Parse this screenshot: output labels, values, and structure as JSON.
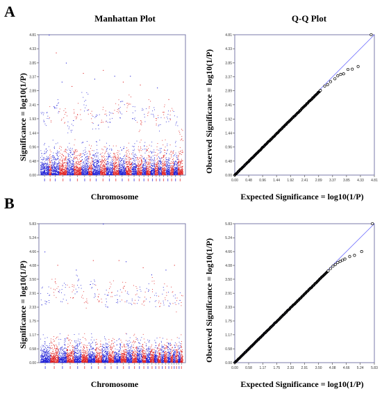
{
  "panels": [
    {
      "letter": "A",
      "manhattan_title": "Manhattan Plot",
      "qq_title": "Q-Q Plot"
    },
    {
      "letter": "B"
    }
  ],
  "colors": {
    "odd_chromosome": "#1f1fd6",
    "even_chromosome": "#e02020",
    "qq_points": "#000000",
    "qq_line": "#6a6aff"
  },
  "chart_data": [
    {
      "type": "scatter",
      "subtype": "manhattan",
      "title": "Manhattan Plot",
      "xlabel": "Chromosome",
      "ylabel": "Significance = log10(1/P)",
      "ylim": [
        0,
        4.81
      ],
      "yticks": [
        "0.00",
        "0.48",
        "0.96",
        "1.44",
        "1.93",
        "2.41",
        "2.89",
        "3.37",
        "3.85",
        "4.33",
        "4.81"
      ],
      "chromosome_peaks": [
        2.2,
        2.4,
        2.6,
        2.3,
        1.9,
        2.5,
        2.9,
        2.3,
        2.1,
        2.4,
        2.2,
        2.7,
        2.6,
        2.8,
        2.4,
        2.0,
        2.3,
        2.6,
        2.5,
        2.2,
        2.0,
        2.5,
        2.4,
        2.3,
        2.2,
        1.6
      ],
      "chromosome_widths": [
        1.0,
        0.3,
        0.9,
        0.9,
        0.8,
        0.9,
        0.8,
        0.5,
        0.9,
        0.7,
        0.8,
        0.7,
        0.8,
        0.7,
        0.6,
        0.6,
        0.5,
        0.5,
        0.5,
        0.4,
        0.4,
        0.5,
        0.5,
        0.4,
        0.5,
        0.6
      ],
      "top_hits": [
        [
          0.06,
          4.81
        ],
        [
          0.11,
          4.2
        ],
        [
          0.18,
          3.85
        ],
        [
          0.22,
          3.05
        ],
        [
          0.15,
          3.2
        ],
        [
          0.3,
          3.5
        ],
        [
          0.38,
          3.3
        ],
        [
          0.44,
          3.6
        ],
        [
          0.52,
          3.4
        ],
        [
          0.58,
          3.2
        ],
        [
          0.63,
          3.4
        ],
        [
          0.7,
          3.1
        ],
        [
          0.82,
          3.0
        ],
        [
          0.9,
          2.6
        ]
      ]
    },
    {
      "type": "scatter",
      "subtype": "qq",
      "title": "Q-Q Plot",
      "xlabel": "Expected Significance = log10(1/P)",
      "ylabel": "Observed Significance = log10(1/P)",
      "xlim": [
        0,
        4.81
      ],
      "ylim": [
        0,
        4.81
      ],
      "xticks": [
        "0.00",
        "0.48",
        "0.96",
        "1.44",
        "1.92",
        "2.41",
        "2.89",
        "3.37",
        "3.85",
        "4.33",
        "4.81"
      ],
      "yticks": [
        "0.00",
        "0.48",
        "0.96",
        "1.44",
        "1.92",
        "2.41",
        "2.89",
        "3.37",
        "3.85",
        "4.33",
        "4.81"
      ],
      "tail_points": [
        [
          2.95,
          2.9
        ],
        [
          3.1,
          3.05
        ],
        [
          3.2,
          3.1
        ],
        [
          3.3,
          3.2
        ],
        [
          3.45,
          3.3
        ],
        [
          3.55,
          3.4
        ],
        [
          3.65,
          3.45
        ],
        [
          3.75,
          3.47
        ],
        [
          3.9,
          3.62
        ],
        [
          4.05,
          3.63
        ],
        [
          4.25,
          3.72
        ],
        [
          4.7,
          4.81
        ]
      ]
    },
    {
      "type": "scatter",
      "subtype": "manhattan",
      "xlabel": "Chromosome",
      "ylabel": "Significance = log10(1/P)",
      "ylim": [
        0,
        5.83
      ],
      "yticks": [
        "0.00",
        "0.58",
        "1.17",
        "1.75",
        "2.33",
        "2.91",
        "3.50",
        "4.08",
        "4.66",
        "5.24",
        "5.83"
      ],
      "chromosome_peaks": [
        3.2,
        3.6,
        3.4,
        3.3,
        3.8,
        3.0,
        3.5,
        3.3,
        3.1,
        3.6,
        3.2,
        3.4,
        3.0,
        3.3,
        3.2,
        3.1,
        3.4,
        3.6,
        3.0,
        2.9,
        3.2,
        3.5,
        3.1,
        3.3,
        3.0,
        2.8,
        3.0,
        2.9
      ],
      "chromosome_widths": [
        1.2,
        1.0,
        1.0,
        0.9,
        0.9,
        0.8,
        0.9,
        0.8,
        0.8,
        0.7,
        0.8,
        0.7,
        0.7,
        0.6,
        0.6,
        0.5,
        0.5,
        0.5,
        0.4,
        0.4,
        0.4,
        0.4,
        0.4,
        0.3,
        0.3,
        0.3,
        0.3,
        0.3
      ],
      "top_hits": [
        [
          0.03,
          4.66
        ],
        [
          0.12,
          4.1
        ],
        [
          0.25,
          3.9
        ],
        [
          0.37,
          4.3
        ],
        [
          0.44,
          5.83
        ],
        [
          0.55,
          4.3
        ],
        [
          0.6,
          4.25
        ],
        [
          0.72,
          4.0
        ],
        [
          0.88,
          3.9
        ],
        [
          0.94,
          4.1
        ],
        [
          0.78,
          3.7
        ]
      ]
    },
    {
      "type": "scatter",
      "subtype": "qq",
      "xlabel": "Expected Significance = log10(1/P)",
      "ylabel": "Observed Significance = log10(1/P)",
      "xlim": [
        0,
        5.83
      ],
      "ylim": [
        0,
        5.83
      ],
      "xticks": [
        "0.00",
        "0.58",
        "1.17",
        "1.75",
        "2.33",
        "2.91",
        "3.50",
        "4.08",
        "4.66",
        "5.24",
        "5.83"
      ],
      "yticks": [
        "0.00",
        "0.58",
        "1.17",
        "1.75",
        "2.33",
        "2.91",
        "3.50",
        "4.08",
        "4.66",
        "5.24",
        "5.83"
      ],
      "tail_points": [
        [
          3.9,
          3.85
        ],
        [
          4.0,
          3.95
        ],
        [
          4.1,
          4.05
        ],
        [
          4.2,
          4.12
        ],
        [
          4.3,
          4.2
        ],
        [
          4.4,
          4.25
        ],
        [
          4.5,
          4.3
        ],
        [
          4.6,
          4.35
        ],
        [
          4.8,
          4.45
        ],
        [
          5.0,
          4.5
        ],
        [
          5.3,
          4.66
        ],
        [
          5.75,
          5.83
        ]
      ]
    }
  ]
}
